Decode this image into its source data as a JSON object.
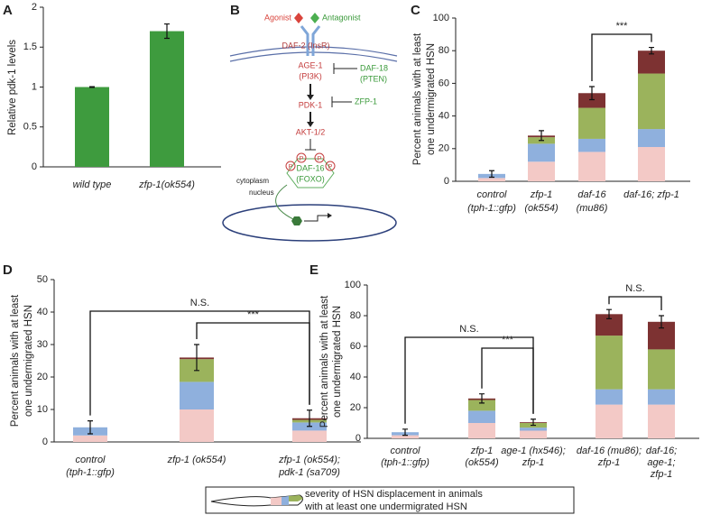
{
  "chart_data": [
    {
      "type": "bar",
      "panel_label": "A",
      "y_label": "Relative pdk-1 levels",
      "categories": [
        "wild type",
        "zfp-1(ok554)"
      ],
      "values": [
        1.0,
        1.7
      ],
      "errors": [
        0.005,
        0.09
      ],
      "color": "#3e9b3e",
      "ylim": [
        0,
        2
      ],
      "yticks": [
        0,
        0.5,
        1,
        1.5,
        2
      ]
    },
    {
      "type": "stacked_bar",
      "panel_label": "C",
      "y_label": [
        "Percent animals with at least",
        "one undermigrated HSN"
      ],
      "categories": [
        [
          "control",
          "(tph-1::gfp)"
        ],
        [
          "zfp-1",
          "(ok554)"
        ],
        [
          "daf-16",
          "(mu86)"
        ],
        [
          "daf-16; zfp-1"
        ]
      ],
      "series": [
        {
          "color": "#f3c9c6",
          "values": [
            2,
            12,
            18,
            21
          ]
        },
        {
          "color": "#8fb0dd",
          "values": [
            2.5,
            11,
            8,
            11
          ]
        },
        {
          "color": "#9bb35c",
          "values": [
            0,
            4,
            19,
            34
          ]
        },
        {
          "color": "#7d3232",
          "values": [
            0,
            1,
            9,
            14
          ]
        }
      ],
      "errors": [
        2,
        3,
        4,
        2
      ],
      "annotations": [
        "***"
      ],
      "ylim": [
        0,
        100
      ],
      "yticks": [
        0,
        20,
        40,
        60,
        80,
        100
      ]
    },
    {
      "type": "stacked_bar",
      "panel_label": "D",
      "y_label": [
        "Percent animals with at least",
        "one undermigrated HSN"
      ],
      "categories": [
        [
          "control",
          "(tph-1::gfp)"
        ],
        [
          "zfp-1 (ok554)"
        ],
        [
          "zfp-1 (ok554);",
          "pdk-1 (sa709)"
        ]
      ],
      "series": [
        {
          "color": "#f3c9c6",
          "values": [
            2,
            10,
            3.5
          ]
        },
        {
          "color": "#8fb0dd",
          "values": [
            2.5,
            8.5,
            2.5
          ]
        },
        {
          "color": "#9bb35c",
          "values": [
            0,
            7,
            0.8
          ]
        },
        {
          "color": "#7d3232",
          "values": [
            0,
            0.5,
            0.5
          ]
        }
      ],
      "errors": [
        2,
        4,
        2.5
      ],
      "annotations": [
        "N.S.",
        "***"
      ],
      "ylim": [
        0,
        50
      ],
      "yticks": [
        0,
        10,
        20,
        30,
        40,
        50
      ]
    },
    {
      "type": "stacked_bar",
      "panel_label": "E",
      "y_label": [
        "Percent animals with at least",
        "one undermigrated HSN"
      ],
      "categories": [
        [
          "control",
          "(tph-1::gfp)"
        ],
        [
          "zfp-1",
          "(ok554)"
        ],
        [
          "age-1 (hx546);",
          "zfp-1"
        ],
        [
          "daf-16 (mu86);",
          "zfp-1"
        ],
        [
          "daf-16;",
          "age-1;",
          "zfp-1"
        ]
      ],
      "series": [
        {
          "color": "#f3c9c6",
          "values": [
            2,
            10,
            5,
            22,
            22
          ]
        },
        {
          "color": "#8fb0dd",
          "values": [
            2,
            8,
            2,
            10,
            10
          ]
        },
        {
          "color": "#9bb35c",
          "values": [
            0,
            7,
            3,
            35,
            26
          ]
        },
        {
          "color": "#7d3232",
          "values": [
            0,
            1,
            0.5,
            14,
            18
          ]
        }
      ],
      "errors": [
        2,
        3,
        2,
        3,
        4
      ],
      "annotations": [
        "N.S.",
        "***",
        "N.S."
      ],
      "ylim": [
        0,
        100
      ],
      "yticks": [
        0,
        20,
        40,
        60,
        80,
        100
      ]
    }
  ],
  "diagram": {
    "panel_label": "B",
    "agonist": "Agonist",
    "antagonist": "Antagonist",
    "receptor": "DAF-2 (InsR)",
    "age1": [
      "AGE-1",
      "(PI3K)"
    ],
    "daf18": [
      "DAF-18",
      "(PTEN)"
    ],
    "zfp1": "ZFP-1",
    "pdk1": "PDK-1",
    "akt": "AKT-1/2",
    "daf16": [
      "DAF-16",
      "(FOXO)"
    ],
    "phospho": "P",
    "cytoplasm": "cytoplasm",
    "nucleus": "nucleus"
  },
  "legend_box": {
    "lines": [
      "severity of HSN displacement in animals",
      "with at least one undermigrated HSN"
    ]
  }
}
